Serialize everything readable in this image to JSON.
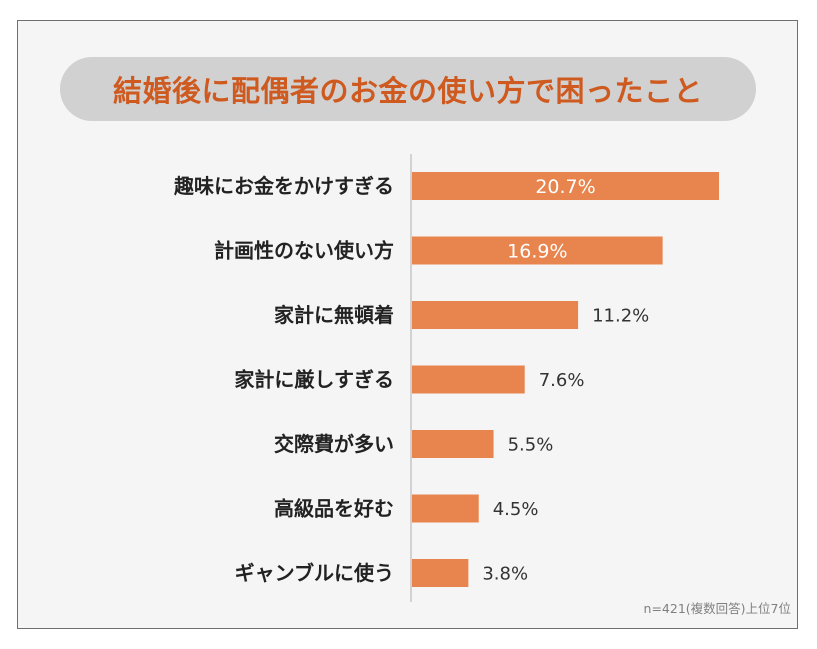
{
  "chart_data": {
    "type": "bar",
    "orientation": "horizontal",
    "title": "結婚後に配偶者のお金の使い方で困ったこと",
    "categories": [
      "趣味にお金をかけすぎる",
      "計画性のない使い方",
      "家計に無頓着",
      "家計に厳しすぎる",
      "交際費が多い",
      "高級品を好む",
      "ギャンブルに使う"
    ],
    "values": [
      20.7,
      16.9,
      11.2,
      7.6,
      5.5,
      4.5,
      3.8
    ],
    "value_labels": [
      "20.7%",
      "16.9%",
      "11.2%",
      "7.6%",
      "5.5%",
      "4.5%",
      "3.8%"
    ],
    "unit": "%",
    "bar_color": "#e8854f",
    "xlim": [
      0,
      21
    ],
    "grid": false,
    "legend": "none",
    "note": "n=421(複数回答)上位7位"
  },
  "colors": {
    "title": "#cf5a1f",
    "title_background": "#d1d1d1",
    "panel_background": "#f5f5f5",
    "axis": "#bbbbbb"
  }
}
